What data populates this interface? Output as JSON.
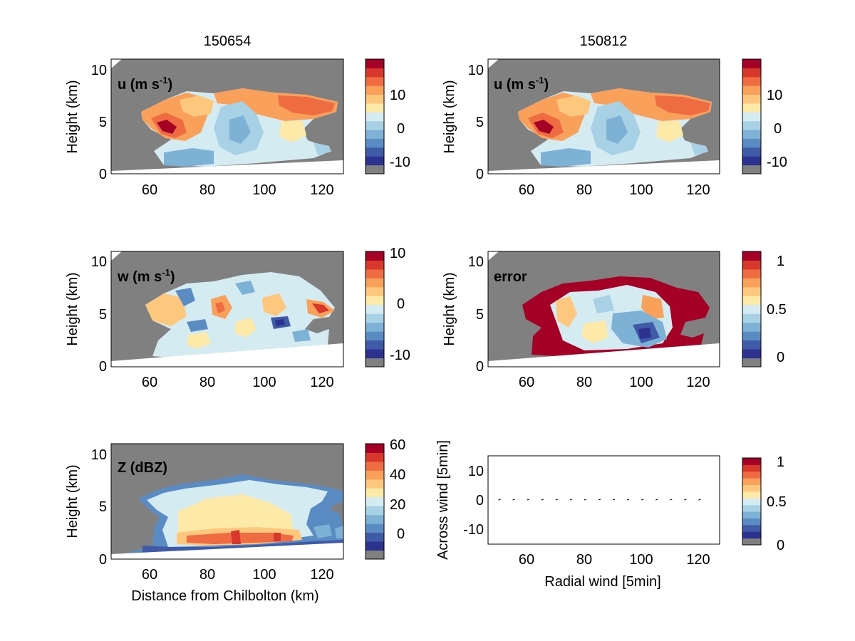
{
  "column_titles": [
    "150654",
    "150812"
  ],
  "colors": {
    "background": "#808080",
    "no_data": "#ffffff",
    "palette": [
      "#2d3291",
      "#3f5ba8",
      "#5a8bc2",
      "#7db1d5",
      "#a8d1e6",
      "#d4ebf2",
      "#fde9a8",
      "#fdc87d",
      "#f9a05a",
      "#ef6c43",
      "#d8372b",
      "#a50026"
    ]
  },
  "chart_data": [
    {
      "type": "heatmap",
      "panel": "u_150654",
      "title": "150654",
      "label": "u (m s⁻¹)",
      "ylabel": "Height (km)",
      "xlabel": "",
      "xlim": [
        46,
        127
      ],
      "ylim": [
        0,
        11
      ],
      "xticks": [
        "60",
        "80",
        "100",
        "120"
      ],
      "yticks": [
        "0",
        "5",
        "10"
      ],
      "colorbar": {
        "range": [
          -14,
          20
        ],
        "ticks": [
          "-10",
          "0",
          "10"
        ]
      }
    },
    {
      "type": "heatmap",
      "panel": "u_150812",
      "title": "150812",
      "label": "u (m s⁻¹)",
      "ylabel": "Height (km)",
      "xlabel": "",
      "xlim": [
        46,
        127
      ],
      "ylim": [
        0,
        11
      ],
      "xticks": [
        "60",
        "80",
        "100",
        "120"
      ],
      "yticks": [
        "0",
        "5",
        "10"
      ],
      "colorbar": {
        "range": [
          -14,
          20
        ],
        "ticks": [
          "-10",
          "0",
          "10"
        ]
      }
    },
    {
      "type": "heatmap",
      "panel": "w",
      "label": "w (m s⁻¹)",
      "ylabel": "Height (km)",
      "xlabel": "",
      "xlim": [
        46,
        127
      ],
      "ylim": [
        0,
        11
      ],
      "xticks": [
        "60",
        "80",
        "100",
        "120"
      ],
      "yticks": [
        "0",
        "5",
        "10"
      ],
      "colorbar": {
        "range": [
          -13,
          10
        ],
        "ticks": [
          "10",
          "0",
          "-10"
        ]
      }
    },
    {
      "type": "heatmap",
      "panel": "error",
      "label": "error",
      "ylabel": "Height (km)",
      "xlabel": "",
      "xlim": [
        46,
        127
      ],
      "ylim": [
        0,
        11
      ],
      "xticks": [
        "60",
        "80",
        "100",
        "120"
      ],
      "yticks": [
        "0",
        "5",
        "10"
      ],
      "colorbar": {
        "range": [
          -0.1,
          1.1
        ],
        "ticks": [
          "1",
          "0.5",
          "0"
        ]
      }
    },
    {
      "type": "heatmap",
      "panel": "Z",
      "label": "Z (dBZ)",
      "ylabel": "Height (km)",
      "xlabel": "Distance from Chilbolton (km)",
      "xlim": [
        46,
        127
      ],
      "ylim": [
        0,
        11
      ],
      "xticks": [
        "60",
        "80",
        "100",
        "120"
      ],
      "yticks": [
        "0",
        "5",
        "10"
      ],
      "colorbar": {
        "range": [
          -18,
          60
        ],
        "ticks": [
          "60",
          "40",
          "20",
          "0"
        ]
      }
    },
    {
      "type": "scatter",
      "panel": "quiver",
      "label": "",
      "xlabel": "Radial wind [5min]",
      "ylabel": "Across wind [5min]",
      "xlim": [
        46,
        127
      ],
      "ylim": [
        -16,
        16
      ],
      "xticks": [
        "60",
        "80",
        "100",
        "120"
      ],
      "yticks": [
        "-10",
        "0",
        "10"
      ],
      "x": [
        50,
        55,
        60,
        65,
        70,
        75,
        80,
        85,
        90,
        95,
        100,
        105,
        110,
        115,
        120
      ],
      "y": [
        0,
        0,
        0,
        0,
        0,
        0,
        0,
        0,
        0,
        0,
        0,
        0,
        0,
        0,
        0
      ],
      "colorbar": {
        "range": [
          -0.1,
          1.0
        ],
        "ticks": [
          "1",
          "0.5",
          "0"
        ]
      }
    }
  ]
}
